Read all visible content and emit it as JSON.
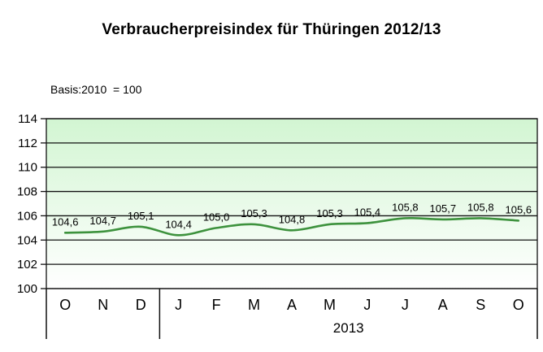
{
  "title": "Verbraucherpreisindex für Thüringen 2012/13",
  "basis_note": "Basis:2010  = 100",
  "chart_data": {
    "type": "line",
    "title": "Verbraucherpreisindex für Thüringen 2012/13",
    "subtitle": "Basis:2010  = 100",
    "categories": [
      "O",
      "N",
      "D",
      "J",
      "F",
      "M",
      "A",
      "M",
      "J",
      "J",
      "A",
      "S",
      "O"
    ],
    "values": [
      104.6,
      104.7,
      105.1,
      104.4,
      105.0,
      105.3,
      104.8,
      105.3,
      105.4,
      105.8,
      105.7,
      105.8,
      105.6
    ],
    "point_labels": [
      "104,6",
      "104,7",
      "105,1",
      "104,4",
      "105,0",
      "105,3",
      "104,8",
      "105,3",
      "105,4",
      "105,8",
      "105,7",
      "105,8",
      "105,6"
    ],
    "yticks": [
      100,
      102,
      104,
      106,
      108,
      110,
      112,
      114
    ],
    "ylim": [
      100,
      114
    ],
    "grid": true,
    "legend": false,
    "group_split_index": 3,
    "x_group_label": "2013",
    "line_color": "#3d923d",
    "plot_bg_top": "#d2f5d2",
    "plot_bg_bottom": "#ffffff",
    "grid_color": "#111111",
    "text_color": "#000000"
  }
}
